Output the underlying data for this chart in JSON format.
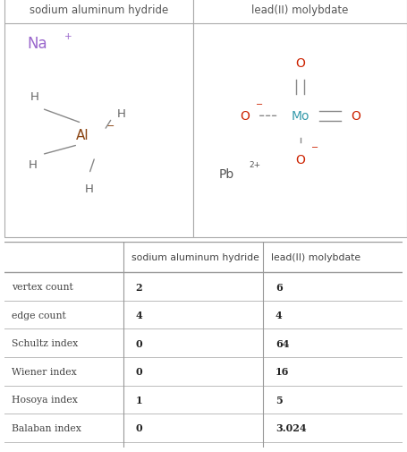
{
  "title_col1": "sodium aluminum hydride",
  "title_col2": "lead(II) molybdate",
  "table_rows": [
    {
      "label": "vertex count",
      "val1": "2",
      "val2": "6"
    },
    {
      "label": "edge count",
      "val1": "4",
      "val2": "4"
    },
    {
      "label": "Schultz index",
      "val1": "0",
      "val2": "64"
    },
    {
      "label": "Wiener index",
      "val1": "0",
      "val2": "16"
    },
    {
      "label": "Hosoya index",
      "val1": "1",
      "val2": "5"
    },
    {
      "label": "Balaban index",
      "val1": "0",
      "val2": "3.024"
    }
  ],
  "na_color": "#9966cc",
  "al_color": "#8b4513",
  "h_color": "#666666",
  "o_color": "#cc2200",
  "mo_color": "#3399aa",
  "pb_color": "#555555",
  "bond_color": "#888888",
  "header_text_color": "#555555",
  "label_color": "#444444",
  "val_color": "#222222",
  "line_color": "#bbbbbb",
  "panel_border_color": "#aaaaaa"
}
